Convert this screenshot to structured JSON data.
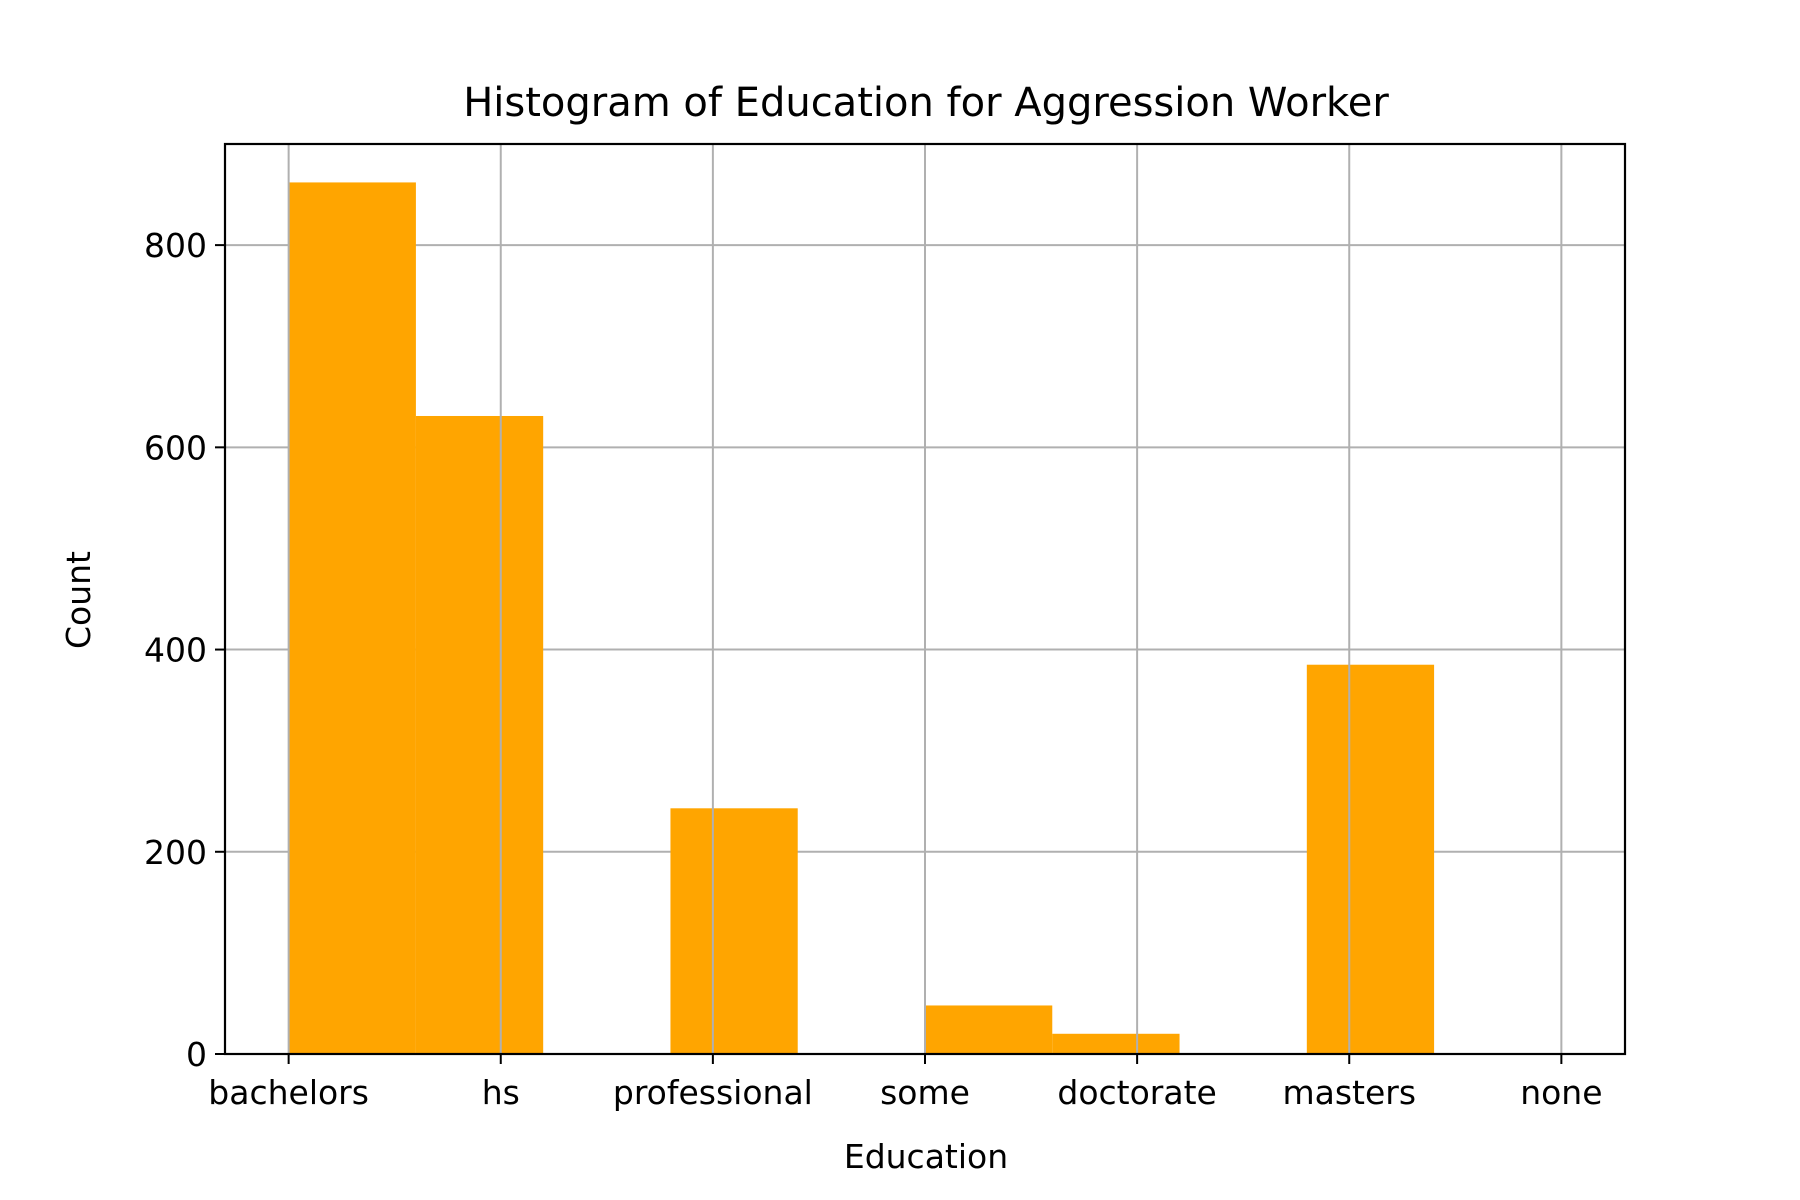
{
  "chart_data": {
    "type": "bar",
    "title": "Histogram of Education for Aggression Worker",
    "xlabel": "Education",
    "ylabel": "Count",
    "bar_color": "#FFA500",
    "grid": true,
    "ylim": [
      0,
      900
    ],
    "yticks": [
      0,
      200,
      400,
      600,
      800
    ],
    "x_ticks": [
      "bachelors",
      "hs",
      "professional",
      "some",
      "doctorate",
      "masters",
      "none"
    ],
    "xlim": [
      -0.3,
      6.3
    ],
    "bins": [
      {
        "x0": 0.0,
        "x1": 0.6,
        "value": 862
      },
      {
        "x0": 0.6,
        "x1": 1.2,
        "value": 631
      },
      {
        "x0": 1.2,
        "x1": 1.8,
        "value": 0
      },
      {
        "x0": 1.8,
        "x1": 2.4,
        "value": 243
      },
      {
        "x0": 2.4,
        "x1": 3.0,
        "value": 0
      },
      {
        "x0": 3.0,
        "x1": 3.6,
        "value": 48
      },
      {
        "x0": 3.6,
        "x1": 4.2,
        "value": 20
      },
      {
        "x0": 4.2,
        "x1": 4.8,
        "value": 0
      },
      {
        "x0": 4.8,
        "x1": 5.4,
        "value": 385
      },
      {
        "x0": 5.4,
        "x1": 6.0,
        "value": 0
      }
    ]
  }
}
